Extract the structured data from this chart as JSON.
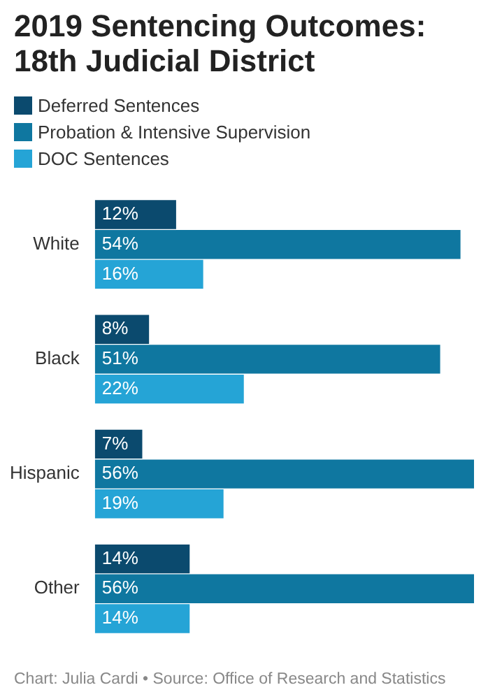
{
  "chart_data": {
    "type": "bar",
    "orientation": "horizontal",
    "title": "2019 Sentencing Outcomes: 18th Judicial District",
    "categories": [
      "White",
      "Black",
      "Hispanic",
      "Other"
    ],
    "series": [
      {
        "name": "Deferred Sentences",
        "color": "#0b4a6e",
        "values": [
          12,
          8,
          7,
          14
        ],
        "value_labels": [
          "12%",
          "8%",
          "7%",
          "14%"
        ]
      },
      {
        "name": "Probation & Intensive Supervision",
        "color": "#0f77a0",
        "values": [
          54,
          51,
          56,
          56
        ],
        "value_labels": [
          "54%",
          "51%",
          "56%",
          "56%"
        ]
      },
      {
        "name": "DOC Sentences",
        "color": "#25a4d6",
        "values": [
          16,
          22,
          19,
          14
        ],
        "value_labels": [
          "16%",
          "22%",
          "19%",
          "14%"
        ]
      }
    ],
    "legend": "top",
    "annotations": [
      "Chart: Julia Cardi • Source: Office of Research and Statistics"
    ]
  }
}
